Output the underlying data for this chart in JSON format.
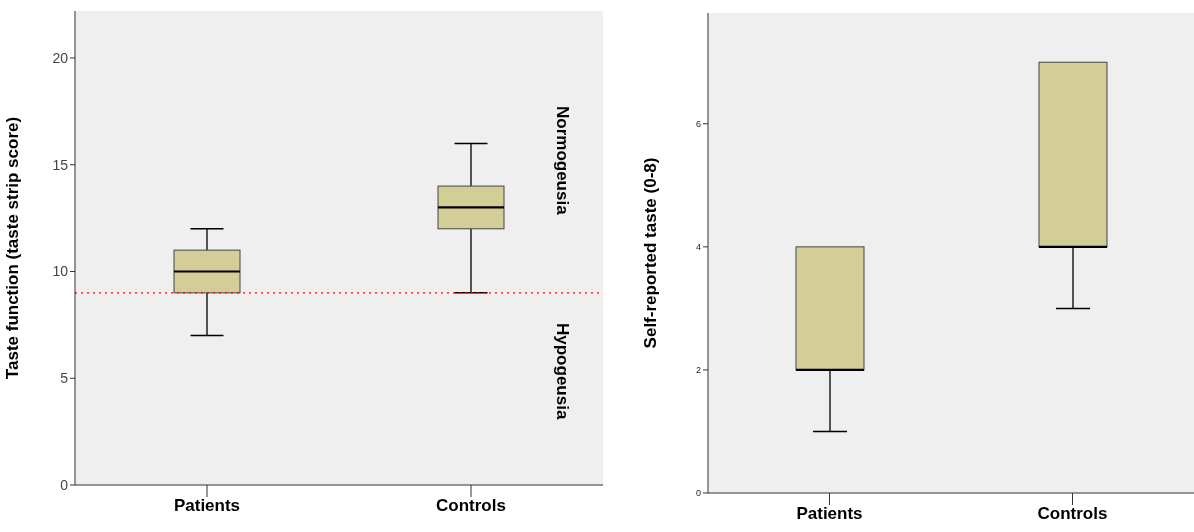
{
  "chart_data": [
    {
      "type": "box",
      "categories": [
        "Patients",
        "Controls"
      ],
      "ylabel": "Taste function (taste strip score)",
      "ylim": [
        0,
        22.2
      ],
      "yticks": [
        0,
        5,
        10,
        15,
        20
      ],
      "color": "#d3cd97",
      "boxes": [
        {
          "low": 7,
          "q1": 9,
          "median": 10,
          "q3": 11,
          "high": 12
        },
        {
          "low": 9,
          "q1": 12,
          "median": 13,
          "q3": 14,
          "high": 16
        }
      ],
      "ref_lines": [
        {
          "axis": "y",
          "value": 9,
          "color": "#ff0000",
          "line_style": "dotted"
        }
      ],
      "annotations": [
        "Normogeusia",
        "Hypogeusia"
      ]
    },
    {
      "type": "box",
      "categories": [
        "Patients",
        "Controls"
      ],
      "ylabel": "Self-reported taste (0-8)",
      "ylim": [
        0,
        7.8
      ],
      "yticks": [
        0,
        2,
        4,
        6
      ],
      "color": "#d3cd97",
      "boxes": [
        {
          "low": 1,
          "q1": 2,
          "median": 2,
          "q3": 4,
          "high": 4
        },
        {
          "low": 3,
          "q1": 4,
          "median": 4,
          "q3": 7,
          "high": 7
        }
      ]
    }
  ]
}
